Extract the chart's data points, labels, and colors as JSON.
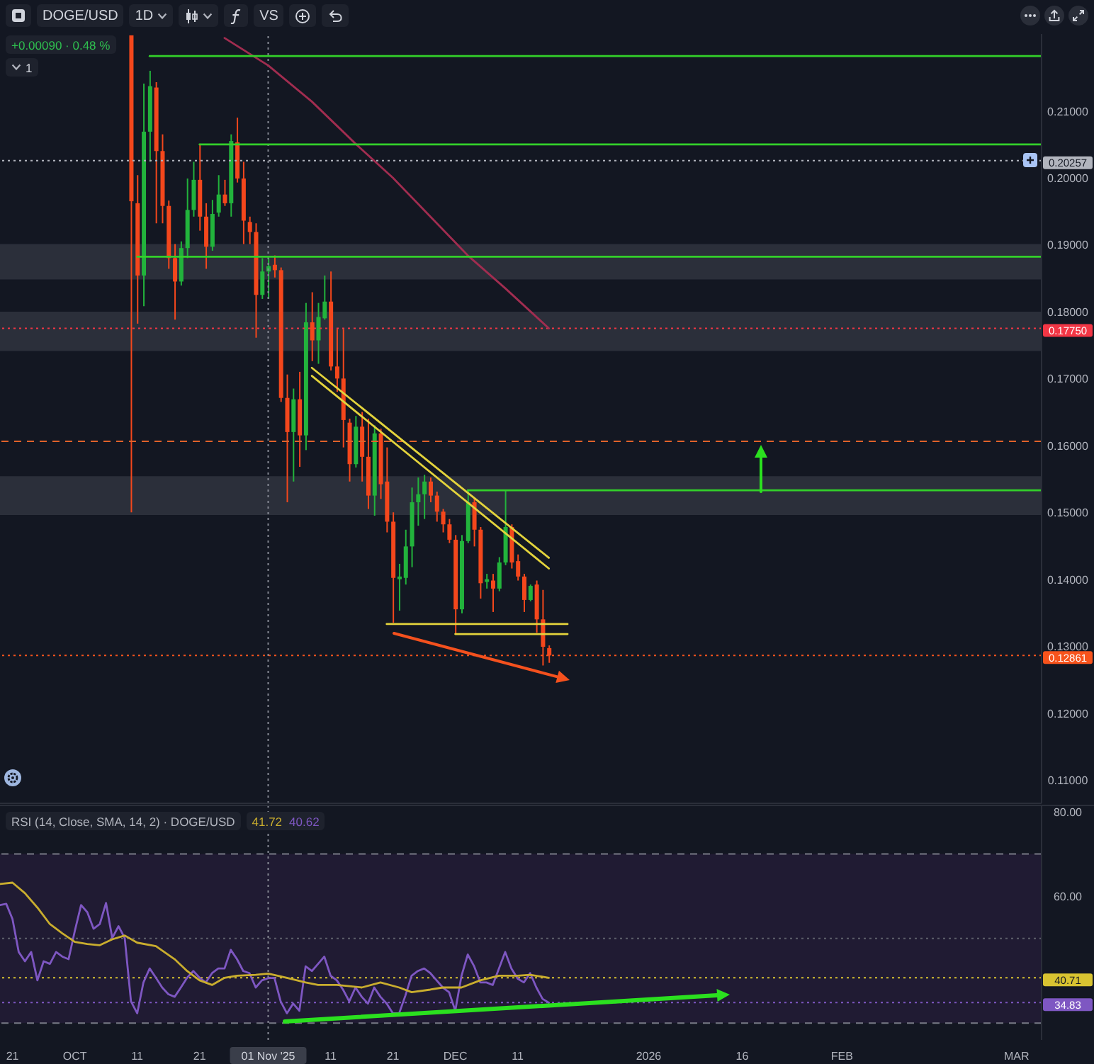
{
  "chart_data": [
    {
      "type": "candlestick",
      "title": "DOGE/USD",
      "annotations": [
        "1D",
        "VS",
        "+0.00090 · 0.48 %",
        "1"
      ],
      "x": [
        "2025-10-10",
        "2025-10-11",
        "2025-10-12",
        "2025-10-13",
        "2025-10-14",
        "2025-10-15",
        "2025-10-16",
        "2025-10-17",
        "2025-10-18",
        "2025-10-19",
        "2025-10-20",
        "2025-10-21",
        "2025-10-22",
        "2025-10-23",
        "2025-10-24",
        "2025-10-25",
        "2025-10-26",
        "2025-10-27",
        "2025-10-28",
        "2025-10-29",
        "2025-10-30",
        "2025-10-31",
        "2025-11-01",
        "2025-11-02",
        "2025-11-03",
        "2025-11-04",
        "2025-11-05",
        "2025-11-06",
        "2025-11-07",
        "2025-11-08",
        "2025-11-09",
        "2025-11-10",
        "2025-11-11",
        "2025-11-12",
        "2025-11-13",
        "2025-11-14",
        "2025-11-15",
        "2025-11-16",
        "2025-11-17",
        "2025-11-18",
        "2025-11-19",
        "2025-11-20",
        "2025-11-21",
        "2025-11-22",
        "2025-11-23",
        "2025-11-24",
        "2025-11-25",
        "2025-11-26",
        "2025-11-27",
        "2025-11-28",
        "2025-11-29",
        "2025-11-30",
        "2025-12-01",
        "2025-12-02",
        "2025-12-03",
        "2025-12-04",
        "2025-12-05",
        "2025-12-06",
        "2025-12-07",
        "2025-12-08",
        "2025-12-09",
        "2025-12-10",
        "2025-12-11",
        "2025-12-12",
        "2025-12-13",
        "2025-12-14",
        "2025-12-15",
        "2025-12-16"
      ],
      "ohlc": [
        [
          0.2213,
          0.2213,
          0.15,
          0.1965
        ],
        [
          0.1962,
          0.2004,
          0.1782,
          0.1854
        ],
        [
          0.1854,
          0.2141,
          0.1808,
          0.2069
        ],
        [
          0.2069,
          0.216,
          0.2024,
          0.2137
        ],
        [
          0.2135,
          0.2143,
          0.1932,
          0.204
        ],
        [
          0.204,
          0.2065,
          0.1932,
          0.1958
        ],
        [
          0.1958,
          0.1966,
          0.1864,
          0.188
        ],
        [
          0.188,
          0.1901,
          0.1788,
          0.1845
        ],
        [
          0.1845,
          0.1905,
          0.1839,
          0.1895
        ],
        [
          0.1895,
          0.1999,
          0.188,
          0.1952
        ],
        [
          0.1952,
          0.2024,
          0.1942,
          0.1997
        ],
        [
          0.1997,
          0.2051,
          0.1921,
          0.1942
        ],
        [
          0.1942,
          0.1962,
          0.1864,
          0.1897
        ],
        [
          0.1897,
          0.1967,
          0.1891,
          0.1946
        ],
        [
          0.1948,
          0.2004,
          0.1942,
          0.1975
        ],
        [
          0.1975,
          0.1997,
          0.1958,
          0.1962
        ],
        [
          0.1962,
          0.2065,
          0.1942,
          0.2055
        ],
        [
          0.2053,
          0.209,
          0.1993,
          0.1999
        ],
        [
          0.1999,
          0.2024,
          0.1901,
          0.1936
        ],
        [
          0.1934,
          0.1942,
          0.1901,
          0.1919
        ],
        [
          0.1919,
          0.1932,
          0.1761,
          0.1825
        ],
        [
          0.1825,
          0.188,
          0.1819,
          0.186
        ],
        [
          0.186,
          0.188,
          0.1819,
          0.1868
        ],
        [
          0.187,
          0.1884,
          0.1851,
          0.1862
        ],
        [
          0.1862,
          0.1866,
          0.1665,
          0.1671
        ],
        [
          0.1671,
          0.1706,
          0.1515,
          0.162
        ],
        [
          0.162,
          0.1685,
          0.1546,
          0.1669
        ],
        [
          0.1669,
          0.171,
          0.1568,
          0.1615
        ],
        [
          0.1615,
          0.1813,
          0.1593,
          0.1784
        ],
        [
          0.1784,
          0.1829,
          0.1726,
          0.1757
        ],
        [
          0.1757,
          0.1813,
          0.1722,
          0.1792
        ],
        [
          0.179,
          0.1854,
          0.1788,
          0.1815
        ],
        [
          0.1815,
          0.186,
          0.1712,
          0.1718
        ],
        [
          0.1718,
          0.1774,
          0.168,
          0.17
        ],
        [
          0.17,
          0.1774,
          0.1597,
          0.1638
        ],
        [
          0.1634,
          0.164,
          0.1546,
          0.1572
        ],
        [
          0.1572,
          0.1644,
          0.1567,
          0.1628
        ],
        [
          0.1628,
          0.165,
          0.1546,
          0.1583
        ],
        [
          0.1583,
          0.164,
          0.1505,
          0.1525
        ],
        [
          0.1525,
          0.163,
          0.1495,
          0.1618
        ],
        [
          0.1618,
          0.1625,
          0.152,
          0.1542
        ],
        [
          0.1546,
          0.1597,
          0.147,
          0.1486
        ],
        [
          0.1486,
          0.15,
          0.1335,
          0.1402
        ],
        [
          0.14,
          0.1423,
          0.1353,
          0.1404
        ],
        [
          0.1402,
          0.1474,
          0.1392,
          0.1449
        ],
        [
          0.1449,
          0.1537,
          0.1418,
          0.1515
        ],
        [
          0.1515,
          0.1552,
          0.148,
          0.1527
        ],
        [
          0.1527,
          0.1556,
          0.149,
          0.1546
        ],
        [
          0.1546,
          0.1552,
          0.1515,
          0.1525
        ],
        [
          0.1525,
          0.1531,
          0.1486,
          0.1501
        ],
        [
          0.1501,
          0.1505,
          0.147,
          0.1482
        ],
        [
          0.1482,
          0.149,
          0.1454,
          0.1459
        ],
        [
          0.1459,
          0.1466,
          0.1318,
          0.1355
        ],
        [
          0.1355,
          0.1466,
          0.1349,
          0.1457
        ],
        [
          0.1457,
          0.1532,
          0.1454,
          0.1515
        ],
        [
          0.1515,
          0.1521,
          0.1449,
          0.1474
        ],
        [
          0.1474,
          0.1478,
          0.1371,
          0.1394
        ],
        [
          0.1396,
          0.1408,
          0.1386,
          0.14
        ],
        [
          0.1398,
          0.1408,
          0.1351,
          0.1386
        ],
        [
          0.1386,
          0.1433,
          0.1382,
          0.1425
        ],
        [
          0.1425,
          0.1532,
          0.1421,
          0.1478
        ],
        [
          0.1478,
          0.1482,
          0.1416,
          0.1425
        ],
        [
          0.1427,
          0.1437,
          0.1398,
          0.1404
        ],
        [
          0.1404,
          0.1408,
          0.1351,
          0.1369
        ],
        [
          0.1369,
          0.1392,
          0.1367,
          0.139
        ],
        [
          0.1392,
          0.1398,
          0.132,
          0.134
        ],
        [
          0.134,
          0.1384,
          0.1271,
          0.1299
        ],
        [
          0.1297,
          0.1301,
          0.1275,
          0.1286
        ]
      ],
      "colors": [
        "#f4471c",
        "#f4471c",
        "#22b33c",
        "#22b33c",
        "#f4471c",
        "#f4471c",
        "#f4471c",
        "#f4471c",
        "#22b33c",
        "#22b33c",
        "#22b33c",
        "#f4471c",
        "#f4471c",
        "#22b33c",
        "#22b33c",
        "#f4471c",
        "#22b33c",
        "#f4471c",
        "#f4471c",
        "#f4471c",
        "#f4471c",
        "#22b33c",
        "#22b33c",
        "#f4471c",
        "#f4471c",
        "#f4471c",
        "#22b33c",
        "#f4471c",
        "#22b33c",
        "#f4471c",
        "#22b33c",
        "#22b33c",
        "#f4471c",
        "#f4471c",
        "#f4471c",
        "#f4471c",
        "#22b33c",
        "#f4471c",
        "#f4471c",
        "#22b33c",
        "#f4471c",
        "#f4471c",
        "#f4471c",
        "#22b33c",
        "#22b33c",
        "#22b33c",
        "#22b33c",
        "#22b33c",
        "#f4471c",
        "#f4471c",
        "#f4471c",
        "#f4471c",
        "#f4471c",
        "#22b33c",
        "#22b33c",
        "#f4471c",
        "#f4471c",
        "#22b33c",
        "#f4471c",
        "#22b33c",
        "#22b33c",
        "#f4471c",
        "#f4471c",
        "#f4471c",
        "#22b33c",
        "#f4471c",
        "#f4471c",
        "#f4471c"
      ],
      "series": [
        {
          "type": "line",
          "color": "#a12d50",
          "x": [
            "2025-10-25",
            "2025-11-01",
            "2025-11-08",
            "2025-11-15",
            "2025-11-21",
            "2025-11-27",
            "2025-12-03",
            "2025-12-09",
            "2025-12-16"
          ],
          "values": [
            0.2209,
            0.2168,
            0.2114,
            0.2051,
            0.2,
            0.1942,
            0.1884,
            0.1835,
            0.1775
          ]
        },
        {
          "type": "line",
          "color": "#e3d33c",
          "x": [
            "2025-11-08",
            "2025-12-16"
          ],
          "values": [
            0.1716,
            0.1432
          ]
        },
        {
          "type": "line",
          "color": "#e3d33c",
          "x": [
            "2025-11-08",
            "2025-12-16"
          ],
          "values": [
            0.1704,
            0.1416
          ]
        },
        {
          "type": "line",
          "color": "#e3d33c",
          "x": [
            "2025-11-20",
            "2025-12-19"
          ],
          "values": [
            0.1333,
            0.1333
          ]
        },
        {
          "type": "line",
          "color": "#e3d33c",
          "x": [
            "2025-12-01",
            "2025-12-19"
          ],
          "values": [
            0.1318,
            0.1318
          ]
        },
        {
          "type": "line",
          "color": "#33d02a",
          "x": [
            "2025-10-13",
            "2026-03-05"
          ],
          "values": [
            0.2182,
            0.2182
          ]
        },
        {
          "type": "line",
          "color": "#33d02a",
          "x": [
            "2025-10-21",
            "2026-03-05"
          ],
          "values": [
            0.205,
            0.205
          ]
        },
        {
          "type": "line",
          "color": "#33d02a",
          "x": [
            "2025-10-11",
            "2026-03-05"
          ],
          "values": [
            0.1882,
            0.1882
          ]
        },
        {
          "type": "line",
          "color": "#33d02a",
          "x": [
            "2025-12-03",
            "2026-03-05"
          ],
          "values": [
            0.1533,
            0.1533
          ]
        }
      ],
      "ref_lines": [
        {
          "axis": "x",
          "value": "2025-11-01",
          "color": "#868993",
          "line_style": "dotted"
        },
        {
          "axis": "y",
          "value": 0.20257,
          "label": "0.20257",
          "color": "#b2b5be",
          "line_style": "dotted"
        },
        {
          "axis": "y",
          "value": 0.1775,
          "label": "0.17750",
          "color": "#f23645",
          "line_style": "dotted"
        },
        {
          "axis": "y",
          "value": 0.1606,
          "color": "#e0622a",
          "line_style": "dashed"
        },
        {
          "axis": "y",
          "value": 0.12861,
          "label": "0.12861",
          "color": "#f7531c",
          "line_style": "dotted"
        }
      ],
      "bands": [
        {
          "axis": "y",
          "from": 0.1848,
          "to": 0.1901,
          "color": "#2b2f3a"
        },
        {
          "axis": "y",
          "from": 0.1741,
          "to": 0.18,
          "color": "#2b2f3a"
        },
        {
          "axis": "y",
          "from": 0.1496,
          "to": 0.1554,
          "color": "#2b2f3a"
        }
      ],
      "xlim": [
        "2025-09-19",
        "2026-03-05"
      ],
      "ylim": [
        0.1065,
        0.2215
      ],
      "yticks": [
        {
          "value": 0.11,
          "label": "0.11000"
        },
        {
          "value": 0.12,
          "label": "0.12000"
        },
        {
          "value": 0.13,
          "label": "0.13000"
        },
        {
          "value": 0.14,
          "label": "0.14000"
        },
        {
          "value": 0.15,
          "label": "0.15000"
        },
        {
          "value": 0.16,
          "label": "0.16000"
        },
        {
          "value": 0.17,
          "label": "0.17000"
        },
        {
          "value": 0.18,
          "label": "0.18000"
        },
        {
          "value": 0.19,
          "label": "0.19000"
        },
        {
          "value": 0.2,
          "label": "0.20000"
        },
        {
          "value": 0.21,
          "label": "0.21000"
        }
      ],
      "tick_labels": "y"
    },
    {
      "type": "line",
      "title": "RSI (14, Close, SMA, 14, 2) · DOGE/USD",
      "annotations": [
        "41.72",
        "40.62"
      ],
      "x": [
        "2025-09-19",
        "2025-09-20",
        "2025-09-21",
        "2025-09-22",
        "2025-09-23",
        "2025-09-24",
        "2025-09-25",
        "2025-09-26",
        "2025-09-27",
        "2025-09-28",
        "2025-09-29",
        "2025-09-30",
        "2025-10-01",
        "2025-10-02",
        "2025-10-03",
        "2025-10-04",
        "2025-10-05",
        "2025-10-06",
        "2025-10-07",
        "2025-10-08",
        "2025-10-09",
        "2025-10-10",
        "2025-10-11",
        "2025-10-12",
        "2025-10-13",
        "2025-10-14",
        "2025-10-15",
        "2025-10-16",
        "2025-10-17",
        "2025-10-18",
        "2025-10-19",
        "2025-10-20",
        "2025-10-21",
        "2025-10-22",
        "2025-10-23",
        "2025-10-24",
        "2025-10-25",
        "2025-10-26",
        "2025-10-27",
        "2025-10-28",
        "2025-10-29",
        "2025-10-30",
        "2025-10-31",
        "2025-11-01",
        "2025-11-02",
        "2025-11-03",
        "2025-11-04",
        "2025-11-05",
        "2025-11-06",
        "2025-11-07",
        "2025-11-08",
        "2025-11-09",
        "2025-11-10",
        "2025-11-11",
        "2025-11-12",
        "2025-11-13",
        "2025-11-14",
        "2025-11-15",
        "2025-11-16",
        "2025-11-17",
        "2025-11-18",
        "2025-11-19",
        "2025-11-20",
        "2025-11-21",
        "2025-11-22",
        "2025-11-23",
        "2025-11-24",
        "2025-11-25",
        "2025-11-26",
        "2025-11-27",
        "2025-11-28",
        "2025-11-29",
        "2025-11-30",
        "2025-12-01",
        "2025-12-02",
        "2025-12-03",
        "2025-12-04",
        "2025-12-05",
        "2025-12-06",
        "2025-12-07",
        "2025-12-08",
        "2025-12-09",
        "2025-12-10",
        "2025-12-11",
        "2025-12-12",
        "2025-12-13",
        "2025-12-14",
        "2025-12-15",
        "2025-12-16"
      ],
      "series": [
        {
          "color": "#7e57c2",
          "values": [
            57.9,
            58.2,
            54.6,
            46.8,
            44.6,
            46.8,
            40.1,
            44.6,
            44.0,
            46.8,
            45.7,
            45.1,
            51.8,
            57.9,
            56.2,
            52.3,
            53.4,
            58.4,
            50.1,
            52.9,
            50.1,
            35.1,
            32.3,
            39.6,
            42.9,
            40.7,
            38.4,
            36.8,
            36.2,
            38.4,
            40.7,
            42.3,
            40.7,
            39.6,
            41.8,
            42.9,
            42.9,
            47.3,
            45.1,
            42.3,
            41.8,
            38.4,
            40.1,
            40.6,
            40.7,
            35.1,
            32.3,
            34.6,
            32.9,
            43.4,
            42.3,
            44.0,
            45.7,
            41.2,
            40.1,
            37.9,
            35.1,
            38.4,
            36.2,
            34.6,
            38.4,
            36.2,
            34.6,
            32.3,
            32.3,
            36.5,
            41.2,
            42.3,
            42.9,
            41.8,
            40.1,
            38.4,
            37.3,
            32.9,
            41.2,
            46.2,
            43.5,
            39.6,
            39.6,
            39.0,
            42.9,
            46.8,
            42.9,
            40.5,
            39.6,
            41.8,
            38.4,
            35.7,
            34.8
          ]
        },
        {
          "color": "#c9ad2e",
          "x": [
            "2025-09-19",
            "2025-09-21",
            "2025-09-23",
            "2025-09-25",
            "2025-09-27",
            "2025-09-29",
            "2025-10-01",
            "2025-10-03",
            "2025-10-05",
            "2025-10-07",
            "2025-10-09",
            "2025-10-11",
            "2025-10-14",
            "2025-10-17",
            "2025-10-19",
            "2025-10-21",
            "2025-10-23",
            "2025-10-25",
            "2025-10-27",
            "2025-10-30",
            "2025-11-01",
            "2025-11-04",
            "2025-11-07",
            "2025-11-09",
            "2025-11-12",
            "2025-11-14",
            "2025-11-16",
            "2025-11-19",
            "2025-11-22",
            "2025-11-24",
            "2025-11-27",
            "2025-11-29",
            "2025-12-02",
            "2025-12-05",
            "2025-12-08",
            "2025-12-11",
            "2025-12-13",
            "2025-12-16"
          ],
          "values": [
            62.9,
            63.2,
            60.7,
            57.3,
            53.4,
            51.2,
            49.2,
            48.7,
            48.4,
            49.8,
            50.7,
            49.0,
            48.2,
            45.1,
            42.3,
            40.1,
            39.0,
            40.7,
            41.2,
            41.4,
            41.7,
            40.7,
            39.6,
            39.0,
            39.0,
            38.7,
            38.4,
            39.6,
            38.4,
            37.3,
            37.9,
            38.4,
            38.4,
            40.1,
            41.2,
            41.2,
            41.4,
            40.7
          ]
        }
      ],
      "ref_lines": [
        {
          "axis": "x",
          "value": "2025-11-01",
          "color": "#868993",
          "line_style": "dotted"
        },
        {
          "axis": "y",
          "value": 70,
          "color": "#787b86",
          "line_style": "dashed"
        },
        {
          "axis": "y",
          "value": 50,
          "color": "#5d606b",
          "line_style": "dotted"
        },
        {
          "axis": "y",
          "value": 30,
          "color": "#787b86",
          "line_style": "dashed"
        },
        {
          "axis": "y",
          "value": 40.71,
          "label": "40.71",
          "color": "#d8c331",
          "line_style": "dotted"
        },
        {
          "axis": "y",
          "value": 34.83,
          "label": "34.83",
          "color": "#7e57c2",
          "line_style": "dotted"
        }
      ],
      "bands": [
        {
          "axis": "y",
          "from": 30,
          "to": 70,
          "color": "#201b33"
        }
      ],
      "xlim": [
        "2025-09-19",
        "2026-03-05"
      ],
      "xticks": [
        {
          "value": "2025-09-21",
          "label": "21"
        },
        {
          "value": "2025-10-01",
          "label": "OCT"
        },
        {
          "value": "2025-10-11",
          "label": "11"
        },
        {
          "value": "2025-10-21",
          "label": "21"
        },
        {
          "value": "2025-11-01",
          "label": "01 Nov '25"
        },
        {
          "value": "2025-11-11",
          "label": "11"
        },
        {
          "value": "2025-11-21",
          "label": "21"
        },
        {
          "value": "2025-12-01",
          "label": "DEC"
        },
        {
          "value": "2025-12-11",
          "label": "11"
        },
        {
          "value": "2026-01-01",
          "label": "2026"
        },
        {
          "value": "2026-01-16",
          "label": "16"
        },
        {
          "value": "2026-02-01",
          "label": "FEB"
        },
        {
          "value": "2026-03-01",
          "label": "MAR"
        }
      ],
      "ylim": [
        26,
        81.3
      ],
      "yticks": [
        {
          "value": 60,
          "label": "60.00"
        },
        {
          "value": 80,
          "label": "80.00"
        }
      ]
    }
  ]
}
